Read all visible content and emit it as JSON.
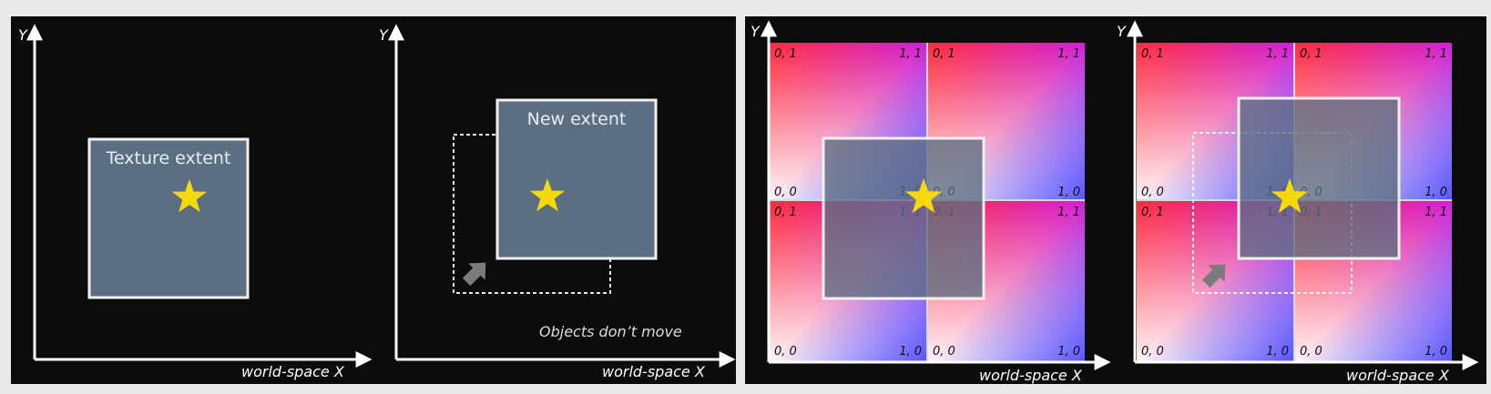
{
  "panel_left": {
    "diagram1": {
      "y_axis_label": "Y",
      "x_axis_label": "world-space X",
      "box_label": "Texture extent"
    },
    "diagram2": {
      "y_axis_label": "Y",
      "x_axis_label": "world-space X",
      "box_label": "New extent",
      "note": "Objects don’t move"
    }
  },
  "panel_right": {
    "diagram3": {
      "y_axis_label": "Y",
      "x_axis_label": "world-space X"
    },
    "diagram4": {
      "y_axis_label": "Y",
      "x_axis_label": "world-space X"
    },
    "uv_labels": {
      "top_left": "0, 1",
      "top_right": "1, 1",
      "bottom_left": "0, 0",
      "bottom_right": "1, 0"
    }
  },
  "colors": {
    "panel_bg": "#0b0b0b",
    "extent_fill": "#5b6e82",
    "star": "#f5d90a",
    "axis": "#ffffff"
  }
}
